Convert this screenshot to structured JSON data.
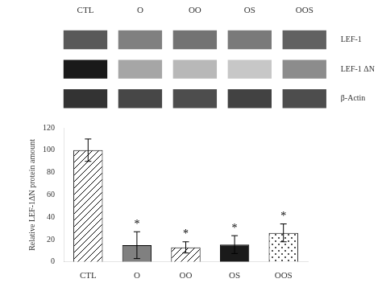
{
  "chart_data": [
    {
      "type": "heatmap",
      "categories": [
        "CTL",
        "O",
        "OO",
        "OS",
        "OOS"
      ],
      "rows": [
        "LEF-1",
        "LEF-1 ΔN",
        "β-Actin"
      ],
      "cells": [
        [
          0.35,
          0.5,
          0.45,
          0.48,
          0.38
        ],
        [
          0.1,
          0.65,
          0.72,
          0.78,
          0.55
        ],
        [
          0.2,
          0.28,
          0.3,
          0.26,
          0.3
        ]
      ]
    },
    {
      "type": "bar",
      "categories": [
        "CTL",
        "O",
        "OO",
        "OS",
        "OOS"
      ],
      "values": [
        100,
        15,
        13,
        15.5,
        26
      ],
      "errors": [
        10,
        12,
        5,
        8,
        8
      ],
      "colors": [
        "white",
        "#808080",
        "white",
        "#1a1a1a",
        "white"
      ],
      "ylabel": "Relative LEF-1ΔN protein amount",
      "ylim": [
        0,
        120
      ],
      "yticks": [
        0,
        20,
        40,
        60,
        80,
        100,
        120
      ],
      "grid": false,
      "significance": [
        false,
        true,
        true,
        true,
        true
      ],
      "significance_mark": "*"
    }
  ]
}
